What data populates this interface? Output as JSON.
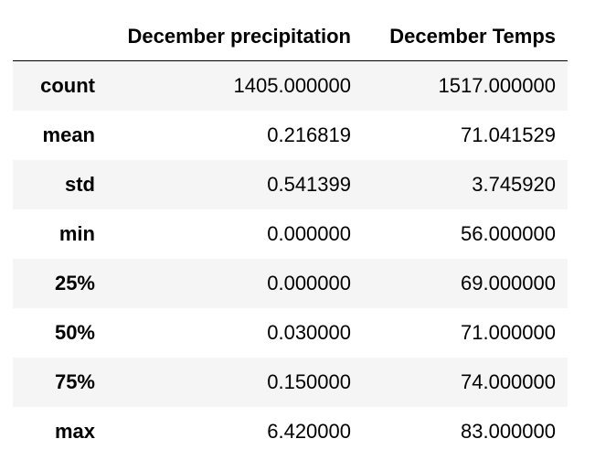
{
  "table": {
    "columns": [
      "December precipitation",
      "December Temps"
    ],
    "rows": [
      {
        "label": "count",
        "values": [
          "1405.000000",
          "1517.000000"
        ]
      },
      {
        "label": "mean",
        "values": [
          "0.216819",
          "71.041529"
        ]
      },
      {
        "label": "std",
        "values": [
          "0.541399",
          "3.745920"
        ]
      },
      {
        "label": "min",
        "values": [
          "0.000000",
          "56.000000"
        ]
      },
      {
        "label": "25%",
        "values": [
          "0.000000",
          "69.000000"
        ]
      },
      {
        "label": "50%",
        "values": [
          "0.030000",
          "71.000000"
        ]
      },
      {
        "label": "75%",
        "values": [
          "0.150000",
          "74.000000"
        ]
      },
      {
        "label": "max",
        "values": [
          "6.420000",
          "83.000000"
        ]
      }
    ]
  },
  "colors": {
    "row_stripe": "#f5f5f5",
    "background": "#ffffff",
    "text": "#000000",
    "header_rule": "#000000"
  }
}
